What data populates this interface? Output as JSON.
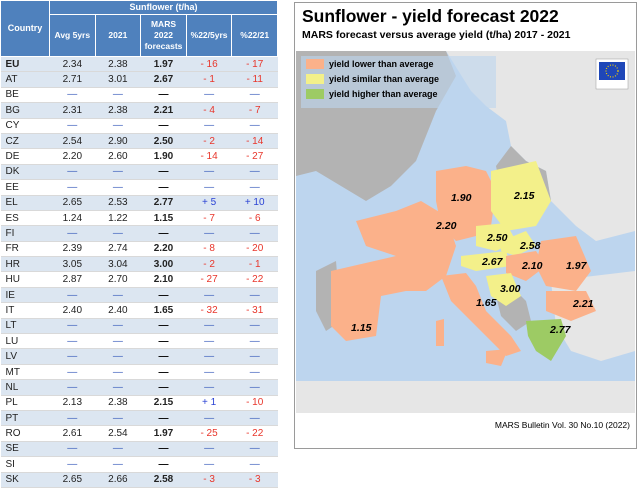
{
  "table": {
    "group_header": "Sunflower (t/ha)",
    "headers": [
      "Country",
      "Avg 5yrs",
      "2021",
      "MARS 2022 forecasts",
      "%22/5yrs",
      "%22/21"
    ],
    "forecast_header_lines": [
      "MARS",
      "2022",
      "forecasts"
    ],
    "rows": [
      {
        "country": "EU",
        "avg": "2.34",
        "y2021": "2.38",
        "fc": "1.97",
        "p5": "- 16",
        "p21": "- 17"
      },
      {
        "country": "AT",
        "avg": "2.71",
        "y2021": "3.01",
        "fc": "2.67",
        "p5": "- 1",
        "p21": "- 11"
      },
      {
        "country": "BE",
        "avg": "—",
        "y2021": "—",
        "fc": "—",
        "p5": "—",
        "p21": "—"
      },
      {
        "country": "BG",
        "avg": "2.31",
        "y2021": "2.38",
        "fc": "2.21",
        "p5": "- 4",
        "p21": "- 7"
      },
      {
        "country": "CY",
        "avg": "—",
        "y2021": "—",
        "fc": "—",
        "p5": "—",
        "p21": "—"
      },
      {
        "country": "CZ",
        "avg": "2.54",
        "y2021": "2.90",
        "fc": "2.50",
        "p5": "- 2",
        "p21": "- 14"
      },
      {
        "country": "DE",
        "avg": "2.20",
        "y2021": "2.60",
        "fc": "1.90",
        "p5": "- 14",
        "p21": "- 27"
      },
      {
        "country": "DK",
        "avg": "—",
        "y2021": "—",
        "fc": "—",
        "p5": "—",
        "p21": "—"
      },
      {
        "country": "EE",
        "avg": "—",
        "y2021": "—",
        "fc": "—",
        "p5": "—",
        "p21": "—"
      },
      {
        "country": "EL",
        "avg": "2.65",
        "y2021": "2.53",
        "fc": "2.77",
        "p5": "+ 5",
        "p21": "+ 10"
      },
      {
        "country": "ES",
        "avg": "1.24",
        "y2021": "1.22",
        "fc": "1.15",
        "p5": "- 7",
        "p21": "- 6"
      },
      {
        "country": "FI",
        "avg": "—",
        "y2021": "—",
        "fc": "—",
        "p5": "—",
        "p21": "—"
      },
      {
        "country": "FR",
        "avg": "2.39",
        "y2021": "2.74",
        "fc": "2.20",
        "p5": "- 8",
        "p21": "- 20"
      },
      {
        "country": "HR",
        "avg": "3.05",
        "y2021": "3.04",
        "fc": "3.00",
        "p5": "- 2",
        "p21": "- 1"
      },
      {
        "country": "HU",
        "avg": "2.87",
        "y2021": "2.70",
        "fc": "2.10",
        "p5": "- 27",
        "p21": "- 22"
      },
      {
        "country": "IE",
        "avg": "—",
        "y2021": "—",
        "fc": "—",
        "p5": "—",
        "p21": "—"
      },
      {
        "country": "IT",
        "avg": "2.40",
        "y2021": "2.40",
        "fc": "1.65",
        "p5": "- 32",
        "p21": "- 31"
      },
      {
        "country": "LT",
        "avg": "—",
        "y2021": "—",
        "fc": "—",
        "p5": "—",
        "p21": "—"
      },
      {
        "country": "LU",
        "avg": "—",
        "y2021": "—",
        "fc": "—",
        "p5": "—",
        "p21": "—"
      },
      {
        "country": "LV",
        "avg": "—",
        "y2021": "—",
        "fc": "—",
        "p5": "—",
        "p21": "—"
      },
      {
        "country": "MT",
        "avg": "—",
        "y2021": "—",
        "fc": "—",
        "p5": "—",
        "p21": "—"
      },
      {
        "country": "NL",
        "avg": "—",
        "y2021": "—",
        "fc": "—",
        "p5": "—",
        "p21": "—"
      },
      {
        "country": "PL",
        "avg": "2.13",
        "y2021": "2.38",
        "fc": "2.15",
        "p5": "+ 1",
        "p21": "- 10"
      },
      {
        "country": "PT",
        "avg": "—",
        "y2021": "—",
        "fc": "—",
        "p5": "—",
        "p21": "—"
      },
      {
        "country": "RO",
        "avg": "2.61",
        "y2021": "2.54",
        "fc": "1.97",
        "p5": "- 25",
        "p21": "- 22"
      },
      {
        "country": "SE",
        "avg": "—",
        "y2021": "—",
        "fc": "—",
        "p5": "—",
        "p21": "—"
      },
      {
        "country": "SI",
        "avg": "—",
        "y2021": "—",
        "fc": "—",
        "p5": "—",
        "p21": "—"
      },
      {
        "country": "SK",
        "avg": "2.65",
        "y2021": "2.66",
        "fc": "2.58",
        "p5": "- 3",
        "p21": "- 3"
      }
    ]
  },
  "map": {
    "title": "Sunflower - yield forecast 2022",
    "subtitle": "MARS forecast versus average yield (t/ha) 2017 - 2021",
    "credit": "MARS Bulletin Vol. 30 No.10 (2022)",
    "legend": [
      {
        "label": "yield lower than average",
        "color": "#fbb18a"
      },
      {
        "label": "yield similar than average",
        "color": "#f3f08a"
      },
      {
        "label": "yield higher than average",
        "color": "#9dcb64"
      }
    ],
    "colors": {
      "sea": "#bdd5ee",
      "other_land": "#b3b3b3",
      "non_eu": "#e6e6e6",
      "lower": "#fbb18a",
      "similar": "#f3f08a",
      "higher": "#9dcb64",
      "eu_flag": "#1f47b8"
    },
    "labels": [
      {
        "country": "FR",
        "value": "2.20"
      },
      {
        "country": "ES",
        "value": "1.15"
      },
      {
        "country": "DE",
        "value": "1.90"
      },
      {
        "country": "PL",
        "value": "2.15"
      },
      {
        "country": "CZ",
        "value": "2.50"
      },
      {
        "country": "SK",
        "value": "2.58"
      },
      {
        "country": "AT",
        "value": "2.67"
      },
      {
        "country": "HU",
        "value": "2.10"
      },
      {
        "country": "RO",
        "value": "1.97"
      },
      {
        "country": "HR",
        "value": "3.00"
      },
      {
        "country": "IT",
        "value": "1.65"
      },
      {
        "country": "BG",
        "value": "2.21"
      },
      {
        "country": "EL",
        "value": "2.77"
      }
    ]
  },
  "chart_data": [
    {
      "type": "table",
      "title": "Sunflower (t/ha)",
      "columns": [
        "Country",
        "Avg 5yrs",
        "2021",
        "MARS 2022 forecasts",
        "%22/5yrs",
        "%22/21"
      ],
      "rows": [
        [
          "EU",
          "2.34",
          "2.38",
          "1.97",
          "- 16",
          "- 17"
        ],
        [
          "AT",
          "2.71",
          "3.01",
          "2.67",
          "- 1",
          "- 11"
        ],
        [
          "BE",
          "—",
          "—",
          "—",
          "—",
          "—"
        ],
        [
          "BG",
          "2.31",
          "2.38",
          "2.21",
          "- 4",
          "- 7"
        ],
        [
          "CY",
          "—",
          "—",
          "—",
          "—",
          "—"
        ],
        [
          "CZ",
          "2.54",
          "2.90",
          "2.50",
          "- 2",
          "- 14"
        ],
        [
          "DE",
          "2.20",
          "2.60",
          "1.90",
          "- 14",
          "- 27"
        ],
        [
          "DK",
          "—",
          "—",
          "—",
          "—",
          "—"
        ],
        [
          "EE",
          "—",
          "—",
          "—",
          "—",
          "—"
        ],
        [
          "EL",
          "2.65",
          "2.53",
          "2.77",
          "+ 5",
          "+ 10"
        ],
        [
          "ES",
          "1.24",
          "1.22",
          "1.15",
          "- 7",
          "- 6"
        ],
        [
          "FI",
          "—",
          "—",
          "—",
          "—",
          "—"
        ],
        [
          "FR",
          "2.39",
          "2.74",
          "2.20",
          "- 8",
          "- 20"
        ],
        [
          "HR",
          "3.05",
          "3.04",
          "3.00",
          "- 2",
          "- 1"
        ],
        [
          "HU",
          "2.87",
          "2.70",
          "2.10",
          "- 27",
          "- 22"
        ],
        [
          "IE",
          "—",
          "—",
          "—",
          "—",
          "—"
        ],
        [
          "IT",
          "2.40",
          "2.40",
          "1.65",
          "- 32",
          "- 31"
        ],
        [
          "LT",
          "—",
          "—",
          "—",
          "—",
          "—"
        ],
        [
          "LU",
          "—",
          "—",
          "—",
          "—",
          "—"
        ],
        [
          "LV",
          "—",
          "—",
          "—",
          "—",
          "—"
        ],
        [
          "MT",
          "—",
          "—",
          "—",
          "—",
          "—"
        ],
        [
          "NL",
          "—",
          "—",
          "—",
          "—",
          "—"
        ],
        [
          "PL",
          "2.13",
          "2.38",
          "2.15",
          "+ 1",
          "- 10"
        ],
        [
          "PT",
          "—",
          "—",
          "—",
          "—",
          "—"
        ],
        [
          "RO",
          "2.61",
          "2.54",
          "1.97",
          "- 25",
          "- 22"
        ],
        [
          "SE",
          "—",
          "—",
          "—",
          "—",
          "—"
        ],
        [
          "SI",
          "—",
          "—",
          "—",
          "—",
          "—"
        ],
        [
          "SK",
          "2.65",
          "2.66",
          "2.58",
          "- 3",
          "- 3"
        ]
      ]
    },
    {
      "type": "map",
      "title": "Sunflower - yield forecast 2022",
      "subtitle": "MARS forecast versus average yield (t/ha) 2017 - 2021",
      "legend": [
        "yield lower than average",
        "yield similar than average",
        "yield higher than average"
      ],
      "regions": [
        {
          "country": "FR",
          "value": 2.2,
          "class": "lower"
        },
        {
          "country": "ES",
          "value": 1.15,
          "class": "lower"
        },
        {
          "country": "DE",
          "value": 1.9,
          "class": "lower"
        },
        {
          "country": "PL",
          "value": 2.15,
          "class": "similar"
        },
        {
          "country": "CZ",
          "value": 2.5,
          "class": "similar"
        },
        {
          "country": "SK",
          "value": 2.58,
          "class": "similar"
        },
        {
          "country": "AT",
          "value": 2.67,
          "class": "similar"
        },
        {
          "country": "HU",
          "value": 2.1,
          "class": "lower"
        },
        {
          "country": "RO",
          "value": 1.97,
          "class": "lower"
        },
        {
          "country": "HR",
          "value": 3.0,
          "class": "similar"
        },
        {
          "country": "IT",
          "value": 1.65,
          "class": "lower"
        },
        {
          "country": "BG",
          "value": 2.21,
          "class": "lower"
        },
        {
          "country": "EL",
          "value": 2.77,
          "class": "higher"
        }
      ]
    }
  ]
}
